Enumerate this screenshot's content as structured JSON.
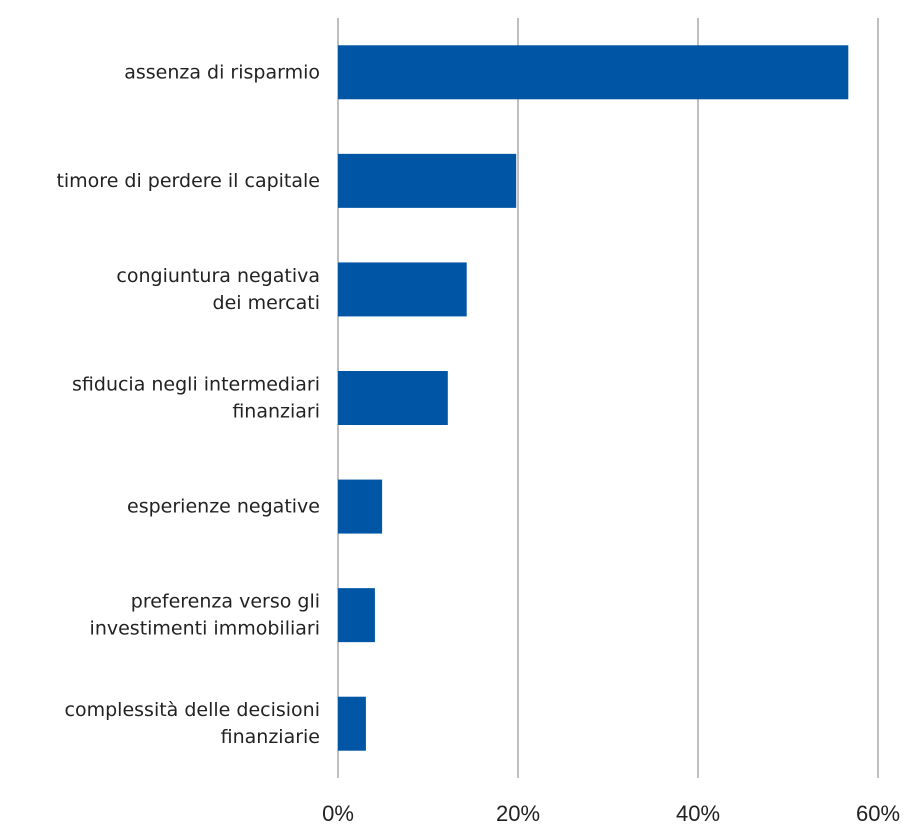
{
  "chart_data": {
    "type": "bar",
    "orientation": "horizontal",
    "categories": [
      "assenza di risparmio",
      "timore di perdere il capitale",
      "congiuntura negativa\ndei mercati",
      "sfiducia negli intermediari\nfinanziari",
      "esperienze negative",
      "preferenza verso gli\ninvestimenti immobiliari",
      "complessità delle decisioni\nfinanziarie"
    ],
    "values": [
      56.7,
      19.8,
      14.3,
      12.2,
      4.9,
      4.1,
      3.1
    ],
    "color": "#0055a4",
    "xlim": [
      0,
      60
    ],
    "xticks": [
      {
        "value": 0,
        "label": "0%"
      },
      {
        "value": 20,
        "label": "20%"
      },
      {
        "value": 40,
        "label": "40%"
      },
      {
        "value": 60,
        "label": "60%"
      }
    ],
    "grid": true
  }
}
